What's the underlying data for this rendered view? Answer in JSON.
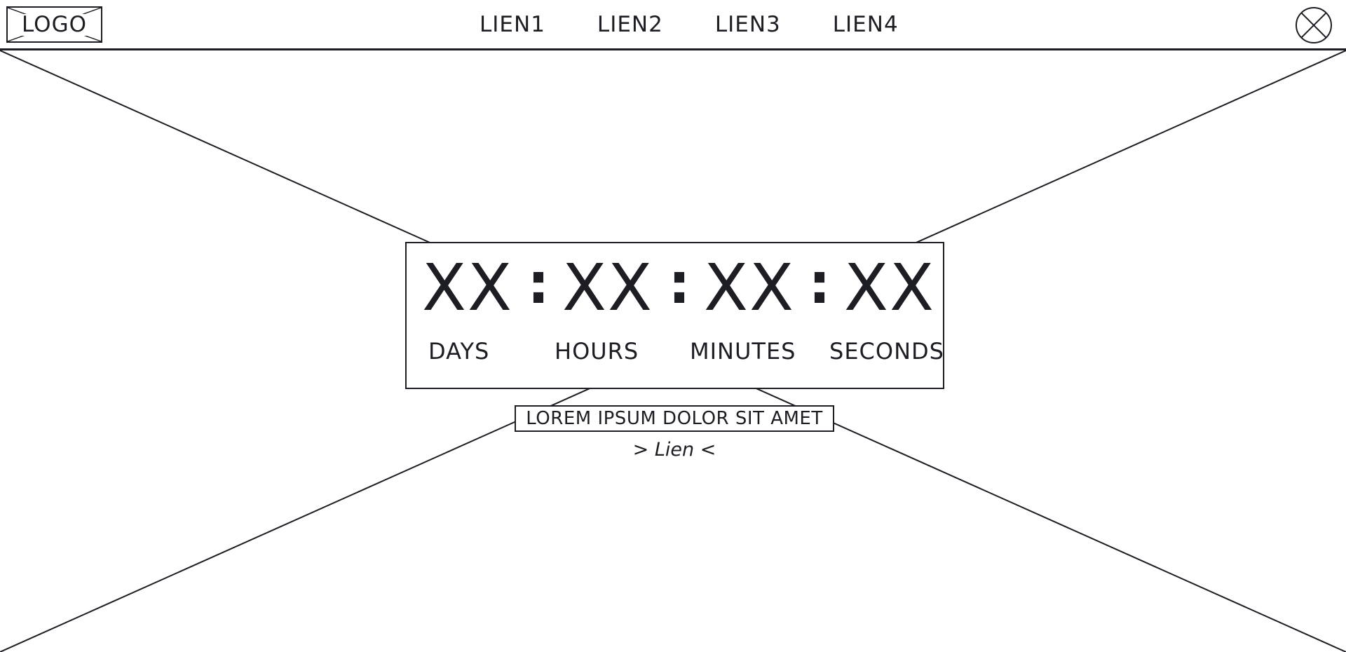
{
  "colors": {
    "ink": "#1d1d24",
    "background": "#ffffff"
  },
  "header": {
    "logo_label": "LOGO",
    "nav": [
      {
        "label": "LIEN1"
      },
      {
        "label": "LIEN2"
      },
      {
        "label": "LIEN3"
      },
      {
        "label": "LIEN4"
      }
    ],
    "close_icon": "close-circle-icon"
  },
  "hero": {
    "image_icon": "image-placeholder-icon"
  },
  "countdown": {
    "days": {
      "value": "XX",
      "label": "DAYS"
    },
    "hours": {
      "value": "XX",
      "label": "HOURS"
    },
    "minutes": {
      "value": "XX",
      "label": "MINUTES"
    },
    "seconds": {
      "value": "XX",
      "label": "SECONDS"
    },
    "separator": ":"
  },
  "tagline": "LOREM IPSUM DOLOR SIT AMET",
  "cta_link": "> Lien <"
}
